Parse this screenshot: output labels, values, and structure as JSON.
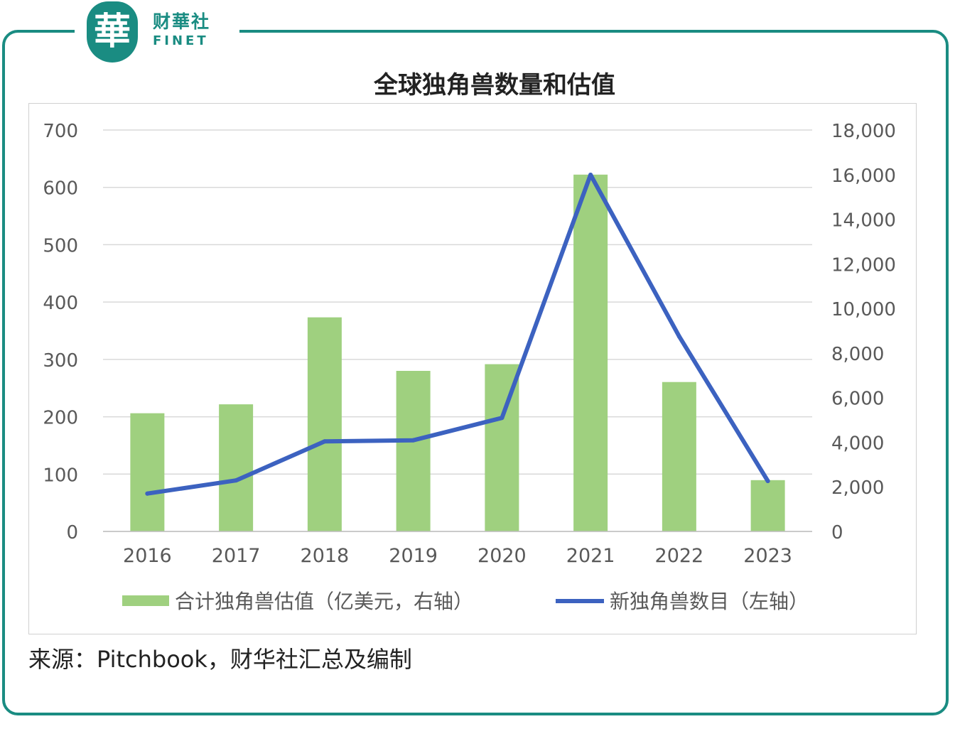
{
  "logo": {
    "cn": "财華社",
    "en": "FINET",
    "badge_char": "華"
  },
  "title": "全球独角兽数量和估值",
  "source": "来源：Pitchbook，财华社汇总及编制",
  "colors": {
    "frame": "#1a8c82",
    "bar": "#9fd07f",
    "line": "#3c62c0",
    "grid": "#d9d9d9",
    "axis_text": "#595959"
  },
  "chart_data": {
    "type": "bar",
    "categories": [
      "2016",
      "2017",
      "2018",
      "2019",
      "2020",
      "2021",
      "2022",
      "2023"
    ],
    "series": [
      {
        "name": "合计独角兽估值（亿美元，右轴）",
        "type": "bar",
        "axis": "right",
        "values": [
          5300,
          5700,
          9600,
          7200,
          7500,
          16000,
          6700,
          2300
        ]
      },
      {
        "name": "新独角兽数目（左轴）",
        "type": "line",
        "axis": "left",
        "values": [
          66,
          89,
          157,
          159,
          198,
          622,
          340,
          88
        ]
      }
    ],
    "y_left": {
      "min": 0,
      "max": 700,
      "ticks": [
        "0",
        "100",
        "200",
        "300",
        "400",
        "500",
        "600",
        "700"
      ]
    },
    "y_right": {
      "min": 0,
      "max": 18000,
      "ticks": [
        "0",
        "2,000",
        "4,000",
        "6,000",
        "8,000",
        "10,000",
        "12,000",
        "14,000",
        "16,000",
        "18,000"
      ]
    },
    "grid": true,
    "legend_position": "bottom"
  }
}
